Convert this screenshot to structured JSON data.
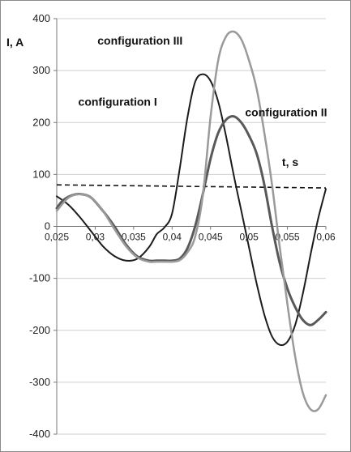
{
  "chart_data": {
    "type": "line",
    "ylabel": "I, A",
    "xlabel": "t, s",
    "xlim": [
      0.025,
      0.06
    ],
    "ylim": [
      -400,
      400
    ],
    "x_ticks": [
      "0,025",
      "0,03",
      "0,035",
      "0,04",
      "0,045",
      "0,05",
      "0,055",
      "0,06"
    ],
    "x_tick_values": [
      0.025,
      0.03,
      0.035,
      0.04,
      0.045,
      0.05,
      0.055,
      0.06
    ],
    "y_ticks": [
      "400",
      "300",
      "200",
      "100",
      "0",
      "-100",
      "-200",
      "-300",
      "-400"
    ],
    "y_tick_values": [
      400,
      300,
      200,
      100,
      0,
      -100,
      -200,
      -300,
      -400
    ],
    "grid": "horizontal",
    "reference_line": {
      "y": 80,
      "style": "dashed"
    },
    "annotations": [
      {
        "text": "configuration III",
        "x": 0.0303,
        "y": 350
      },
      {
        "text": "configuration I",
        "x": 0.0278,
        "y": 232
      },
      {
        "text": "configuration II",
        "x": 0.0495,
        "y": 212
      },
      {
        "text": "t, s",
        "x": 0.0543,
        "y": 116
      }
    ],
    "series": [
      {
        "color": "#1c1c1c",
        "width": 2,
        "x": [
          0.025,
          0.0265,
          0.028,
          0.0295,
          0.031,
          0.0325,
          0.034,
          0.0355,
          0.037,
          0.038,
          0.039,
          0.04,
          0.041,
          0.042,
          0.043,
          0.044,
          0.045,
          0.046,
          0.047,
          0.048,
          0.049,
          0.05,
          0.051,
          0.052,
          0.053,
          0.054,
          0.055,
          0.056,
          0.057,
          0.058,
          0.059,
          0.06
        ],
        "y": [
          58,
          42,
          18,
          -10,
          -38,
          -57,
          -66,
          -62,
          -40,
          -15,
          -2,
          25,
          112,
          210,
          278,
          293,
          280,
          240,
          175,
          100,
          30,
          -40,
          -110,
          -170,
          -212,
          -228,
          -222,
          -190,
          -130,
          -55,
          15,
          72
        ]
      },
      {
        "color": "#595959",
        "width": 3,
        "x": [
          0.025,
          0.0258,
          0.027,
          0.0282,
          0.0295,
          0.031,
          0.0325,
          0.034,
          0.0355,
          0.037,
          0.038,
          0.039,
          0.04,
          0.041,
          0.042,
          0.043,
          0.044,
          0.045,
          0.046,
          0.047,
          0.048,
          0.049,
          0.05,
          0.051,
          0.052,
          0.053,
          0.054,
          0.055,
          0.056,
          0.057,
          0.058,
          0.059,
          0.06
        ],
        "y": [
          35,
          50,
          60,
          62,
          55,
          30,
          0,
          -35,
          -58,
          -66,
          -66,
          -66,
          -66,
          -62,
          -42,
          0,
          62,
          130,
          180,
          205,
          212,
          200,
          175,
          140,
          80,
          0,
          -70,
          -120,
          -155,
          -180,
          -190,
          -180,
          -165
        ]
      },
      {
        "color": "#9a9a9a",
        "width": 2.5,
        "x": [
          0.025,
          0.0265,
          0.028,
          0.0295,
          0.031,
          0.0325,
          0.034,
          0.0355,
          0.037,
          0.038,
          0.039,
          0.04,
          0.041,
          0.042,
          0.043,
          0.044,
          0.045,
          0.046,
          0.047,
          0.048,
          0.049,
          0.05,
          0.051,
          0.052,
          0.053,
          0.054,
          0.055,
          0.056,
          0.057,
          0.058,
          0.059,
          0.06
        ],
        "y": [
          30,
          55,
          62,
          55,
          30,
          -5,
          -38,
          -60,
          -68,
          -68,
          -68,
          -68,
          -65,
          -50,
          -20,
          60,
          210,
          320,
          365,
          375,
          360,
          320,
          265,
          180,
          80,
          -40,
          -150,
          -250,
          -320,
          -352,
          -352,
          -325
        ]
      }
    ]
  }
}
